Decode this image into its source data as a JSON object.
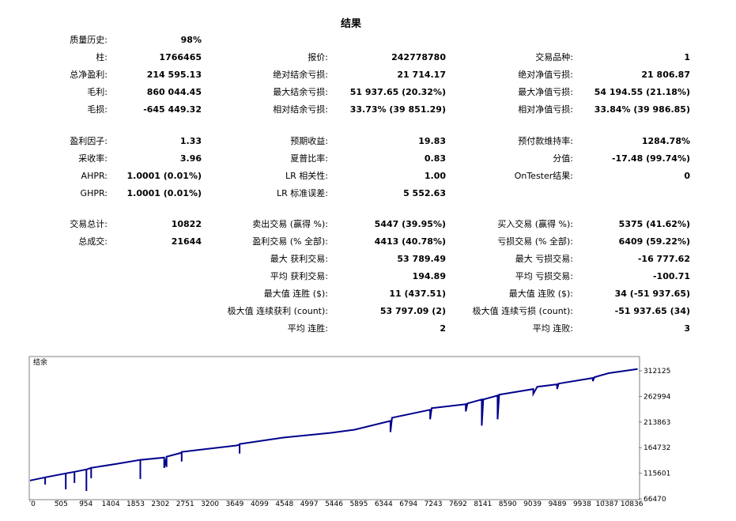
{
  "title": "结果",
  "stats": [
    {
      "rows": [
        [
          {
            "label": "质量历史:",
            "value": "98%"
          },
          null,
          null
        ],
        [
          {
            "label": "柱:",
            "value": "1766465"
          },
          {
            "label": "报价:",
            "value": "242778780"
          },
          {
            "label": "交易品种:",
            "value": "1"
          }
        ],
        [
          {
            "label": "总净盈利:",
            "value": "214 595.13"
          },
          {
            "label": "绝对结余亏损:",
            "value": "21 714.17"
          },
          {
            "label": "绝对净值亏损:",
            "value": "21 806.87"
          }
        ],
        [
          {
            "label": "毛利:",
            "value": "860 044.45"
          },
          {
            "label": "最大结余亏损:",
            "value": "51 937.65 (20.32%)"
          },
          {
            "label": "最大净值亏损:",
            "value": "54 194.55 (21.18%)"
          }
        ],
        [
          {
            "label": "毛损:",
            "value": "-645 449.32"
          },
          {
            "label": "相对结余亏损:",
            "value": "33.73% (39 851.29)"
          },
          {
            "label": "相对净值亏损:",
            "value": "33.84% (39 986.85)"
          }
        ]
      ]
    },
    {
      "rows": [
        [
          {
            "label": "盈利因子:",
            "value": "1.33"
          },
          {
            "label": "预期收益:",
            "value": "19.83"
          },
          {
            "label": "预付款维持率:",
            "value": "1284.78%"
          }
        ],
        [
          {
            "label": "采收率:",
            "value": "3.96"
          },
          {
            "label": "夏普比率:",
            "value": "0.83"
          },
          {
            "label": "分值:",
            "value": "-17.48 (99.74%)"
          }
        ],
        [
          {
            "label": "AHPR:",
            "value": "1.0001 (0.01%)"
          },
          {
            "label": "LR 相关性:",
            "value": "1.00"
          },
          {
            "label": "OnTester结果:",
            "value": "0"
          }
        ],
        [
          {
            "label": "GHPR:",
            "value": "1.0001 (0.01%)"
          },
          {
            "label": "LR 标准误差:",
            "value": "5 552.63"
          },
          null
        ]
      ]
    },
    {
      "rows": [
        [
          {
            "label": "交易总计:",
            "value": "10822"
          },
          {
            "label": "卖出交易 (赢得 %):",
            "value": "5447 (39.95%)"
          },
          {
            "label": "买入交易 (赢得 %):",
            "value": "5375 (41.62%)"
          }
        ],
        [
          {
            "label": "总成交:",
            "value": "21644"
          },
          {
            "label": "盈利交易 (% 全部):",
            "value": "4413 (40.78%)"
          },
          {
            "label": "亏损交易 (% 全部):",
            "value": "6409 (59.22%)"
          }
        ],
        [
          null,
          {
            "label": "最大 获利交易:",
            "value": "53 789.49"
          },
          {
            "label": "最大 亏损交易:",
            "value": "-16 777.62"
          }
        ],
        [
          null,
          {
            "label": "平均 获利交易:",
            "value": "194.89"
          },
          {
            "label": "平均 亏损交易:",
            "value": "-100.71"
          }
        ],
        [
          null,
          {
            "label": "最大值 连胜 ($):",
            "value": "11 (437.51)"
          },
          {
            "label": "最大值 连败 ($):",
            "value": "34 (-51 937.65)"
          }
        ],
        [
          null,
          {
            "label": "极大值 连续获利 (count):",
            "value": "53 797.09 (2)"
          },
          {
            "label": "极大值 连续亏损 (count):",
            "value": "-51 937.65 (34)"
          }
        ],
        [
          null,
          {
            "label": "平均 连胜:",
            "value": "2"
          },
          {
            "label": "平均 连败:",
            "value": "3"
          }
        ]
      ]
    }
  ],
  "chart_data": {
    "type": "line",
    "label": "结余",
    "color": "#00008b",
    "xlim": [
      0,
      11020
    ],
    "ylim": [
      66470,
      338000
    ],
    "xticks": [
      0,
      505,
      954,
      1404,
      1853,
      2302,
      2751,
      3200,
      3649,
      4099,
      4548,
      4997,
      5446,
      5895,
      6344,
      6794,
      7243,
      7692,
      8141,
      8590,
      9039,
      9489,
      9938,
      10387,
      10836
    ],
    "yticks": [
      66470,
      115601,
      164732,
      213863,
      262994,
      312125
    ],
    "series": [
      {
        "name": "结余",
        "x": [
          0,
          273,
          273,
          273,
          647,
          647,
          647,
          805,
          805,
          805,
          1020,
          1020,
          1020,
          1107,
          1107,
          1107,
          1566,
          1997,
          1997,
          1997,
          2429,
          2429,
          2472,
          2472,
          2472,
          2745,
          2745,
          2745,
          3722,
          3794,
          3794,
          3794,
          4584,
          5446,
          5877,
          6524,
          6524,
          6553,
          7243,
          7243,
          7271,
          7889,
          7889,
          7918,
          8177,
          8177,
          8205,
          8464,
          8464,
          8493,
          9111,
          9111,
          9182,
          9541,
          9541,
          9570,
          10188,
          10188,
          10217,
          10476,
          11000
        ],
        "values": [
          101600,
          107700,
          93900,
          107700,
          115300,
          84800,
          115300,
          118400,
          97000,
          118400,
          122900,
          81700,
          122900,
          126000,
          106100,
          126000,
          133600,
          141200,
          104600,
          141200,
          145800,
          126000,
          145800,
          127500,
          147300,
          155000,
          138200,
          156500,
          168700,
          170200,
          153400,
          171800,
          184000,
          193100,
          199200,
          216000,
          194600,
          222100,
          237400,
          219100,
          240400,
          248100,
          234300,
          249600,
          257200,
          206900,
          257200,
          264800,
          219100,
          266400,
          277100,
          267900,
          281600,
          286200,
          277100,
          287700,
          298400,
          292300,
          299900,
          307600,
          315500
        ]
      }
    ]
  }
}
